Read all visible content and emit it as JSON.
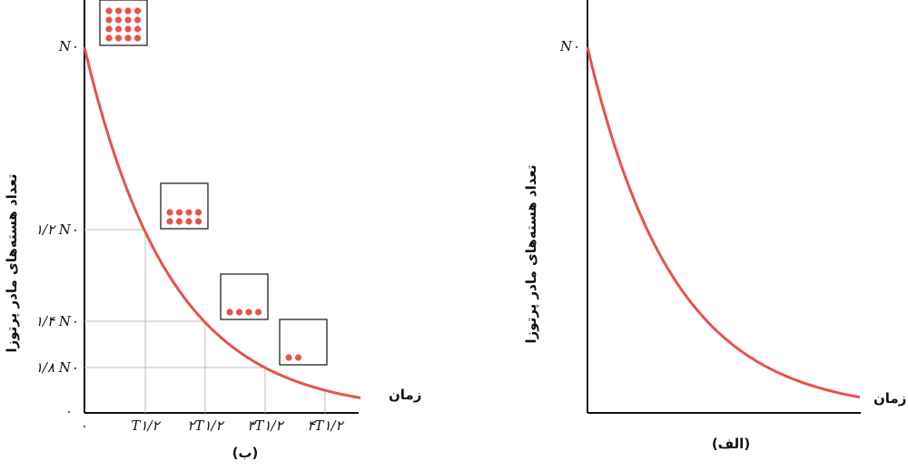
{
  "panel_b": {
    "caption": "(ب)",
    "y_label": "تعداد هسته‌های مادر پرتوزا",
    "x_label": "زمان",
    "y_ticks": [
      "N۰",
      "۱/۲ N۰",
      "۱/۴ N۰",
      "۱/۸ N۰",
      "۰"
    ],
    "x_ticks": [
      "۰",
      "T۱/۲",
      "۲T۱/۲",
      "۳T۱/۲",
      "۴T۱/۲"
    ]
  },
  "panel_a": {
    "caption": "(الف)",
    "y_label": "تعداد هسته‌های مادر پرتوزا",
    "x_label": "زمان",
    "y_tick": "N۰"
  }
}
